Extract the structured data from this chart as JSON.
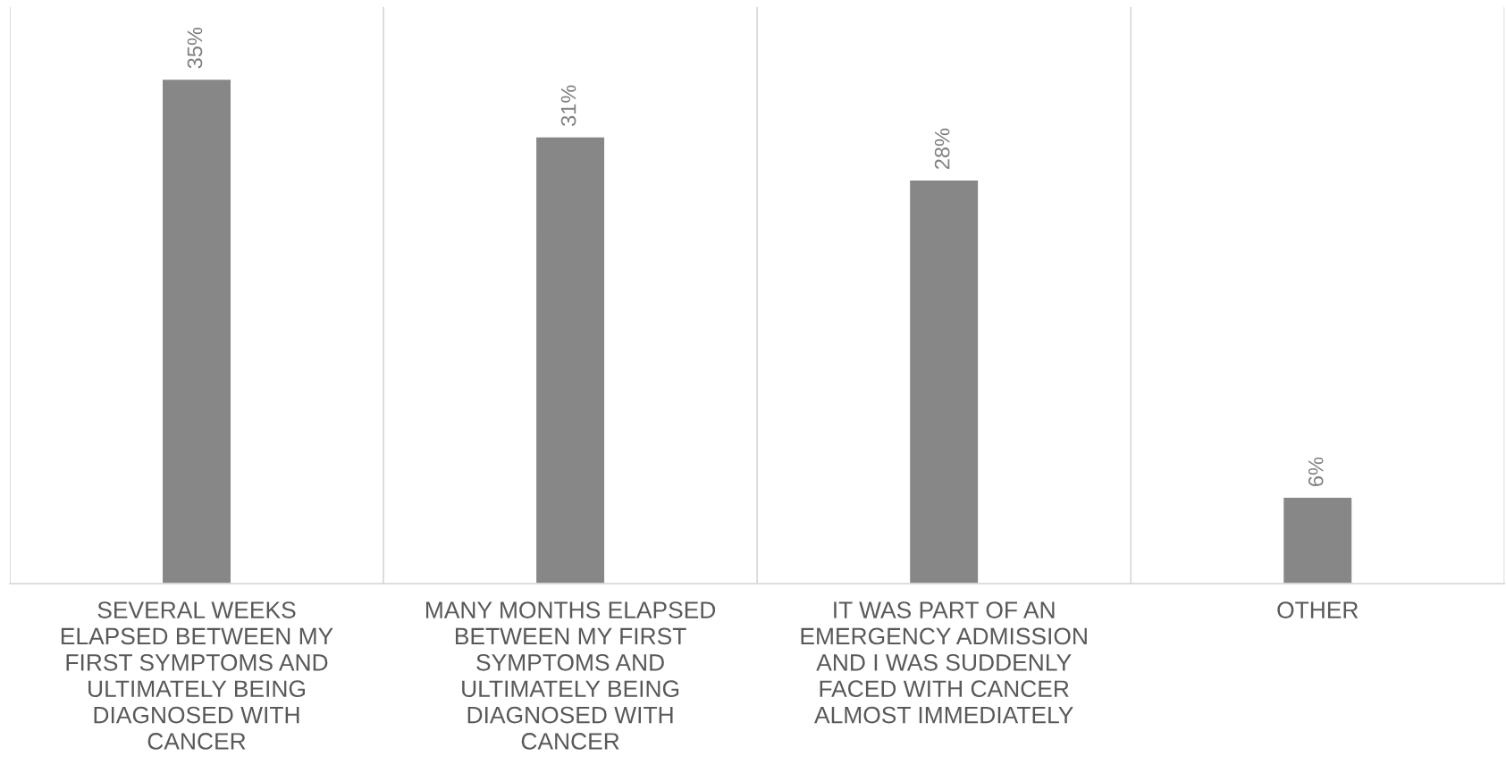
{
  "chart_data": {
    "type": "bar",
    "categories": [
      "SEVERAL WEEKS\nELAPSED BETWEEN MY\nFIRST SYMPTOMS AND\nULTIMATELY BEING\nDIAGNOSED WITH\nCANCER",
      "MANY MONTHS ELAPSED\nBETWEEN MY FIRST\nSYMPTOMS AND\nULTIMATELY BEING\nDIAGNOSED WITH\nCANCER",
      "IT WAS PART OF AN\nEMERGENCY ADMISSION\nAND I WAS SUDDENLY\nFACED WITH CANCER\nALMOST IMMEDIATELY",
      "OTHER"
    ],
    "values": [
      35,
      31,
      28,
      6
    ],
    "value_labels": [
      "35%",
      "31%",
      "28%",
      "6%"
    ],
    "color": "#878787",
    "ylim": [
      0,
      40
    ],
    "tick_labels": "x",
    "grid": "x"
  }
}
